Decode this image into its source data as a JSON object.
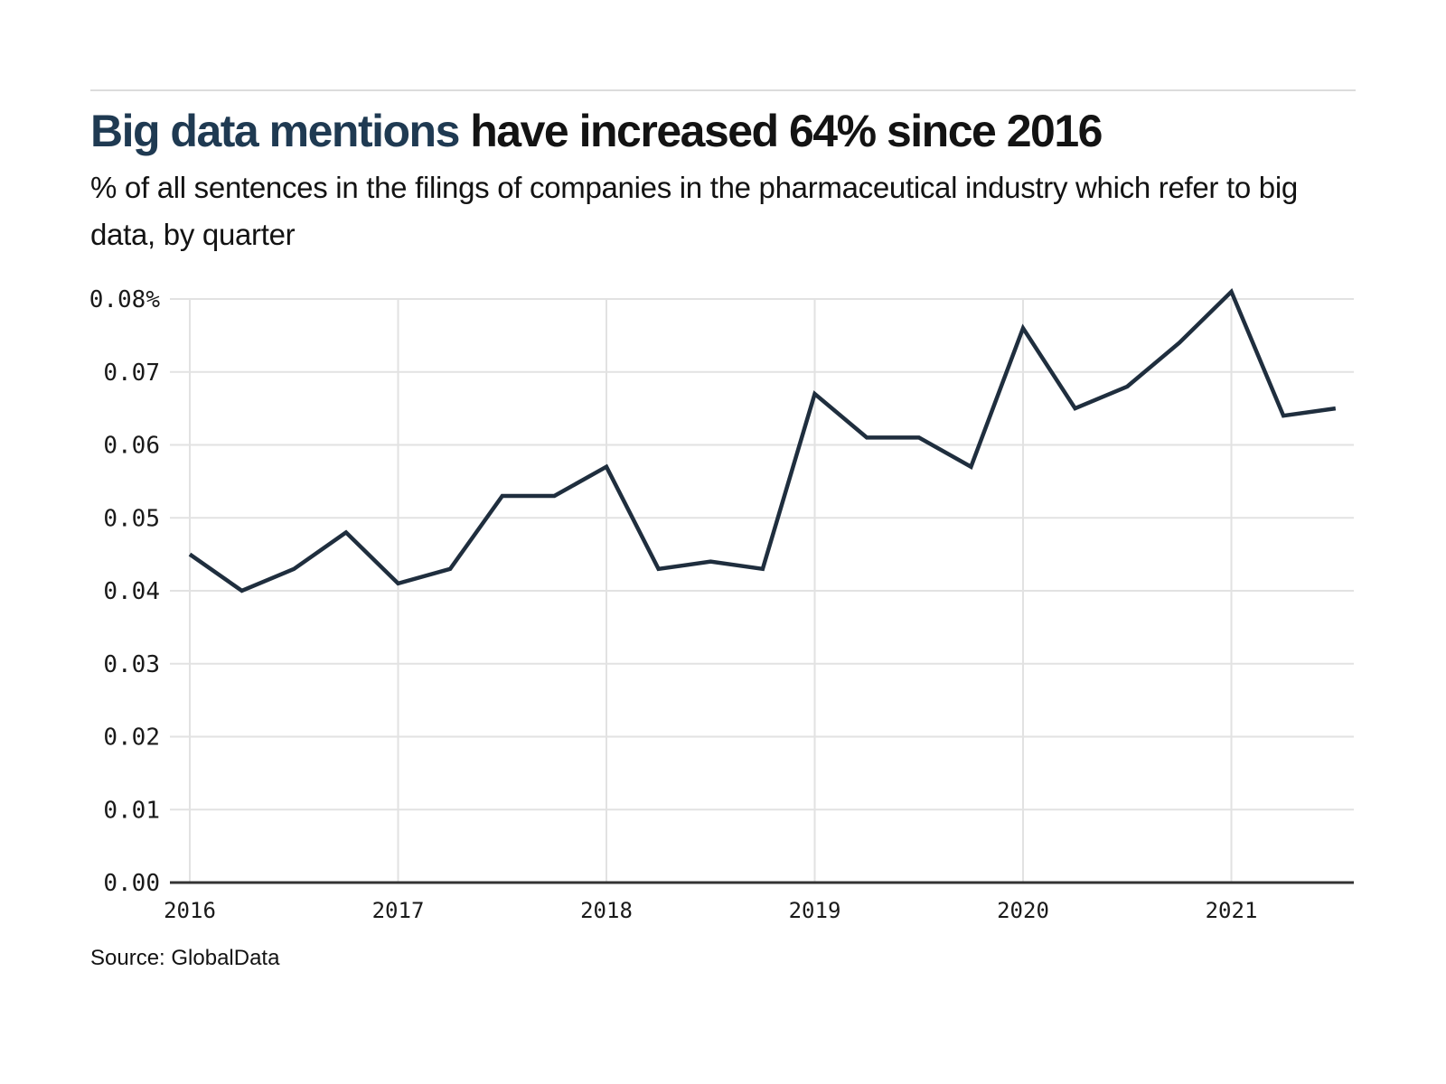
{
  "header": {
    "title_highlight": "Big data mentions",
    "title_rest": " have increased 64% since 2016",
    "subtitle": "% of all sentences in the filings of companies in the pharmaceutical industry which refer to big data, by quarter"
  },
  "footer": {
    "source": "Source: GlobalData"
  },
  "colors": {
    "accent_navy": "#1f3a52",
    "text_black": "#131313",
    "rule_gray": "#dcdcdc"
  },
  "chart_data": {
    "type": "line",
    "title": "Big data mentions have increased 64% since 2016",
    "subtitle": "% of all sentences in the filings of companies in the pharmaceutical industry which refer to big data, by quarter",
    "x": [
      "2016 Q1",
      "2016 Q2",
      "2016 Q3",
      "2016 Q4",
      "2017 Q1",
      "2017 Q2",
      "2017 Q3",
      "2017 Q4",
      "2018 Q1",
      "2018 Q2",
      "2018 Q3",
      "2018 Q4",
      "2019 Q1",
      "2019 Q2",
      "2019 Q3",
      "2019 Q4",
      "2020 Q1",
      "2020 Q2",
      "2020 Q3",
      "2020 Q4",
      "2021 Q1",
      "2021 Q2",
      "2021 Q3"
    ],
    "values": [
      0.045,
      0.04,
      0.043,
      0.048,
      0.041,
      0.043,
      0.053,
      0.053,
      0.057,
      0.043,
      0.044,
      0.043,
      0.067,
      0.061,
      0.061,
      0.057,
      0.076,
      0.065,
      0.068,
      0.074,
      0.081,
      0.064,
      0.065
    ],
    "x_tick_labels": [
      "2016",
      "2017",
      "2018",
      "2019",
      "2020",
      "2021"
    ],
    "x_tick_positions": [
      0,
      4,
      8,
      12,
      16,
      20
    ],
    "y_tick_labels": [
      "0.08%",
      "0.07",
      "0.06",
      "0.05",
      "0.04",
      "0.03",
      "0.02",
      "0.01",
      "0.00"
    ],
    "y_tick_values": [
      0.08,
      0.07,
      0.06,
      0.05,
      0.04,
      0.03,
      0.02,
      0.01,
      0.0
    ],
    "ylim": [
      0,
      0.08
    ],
    "grid": true,
    "legend": "none",
    "line_color": "#1f2e3e",
    "line_width": 4.5,
    "grid_color": "#e2e2e2",
    "axis_color": "#333333"
  }
}
